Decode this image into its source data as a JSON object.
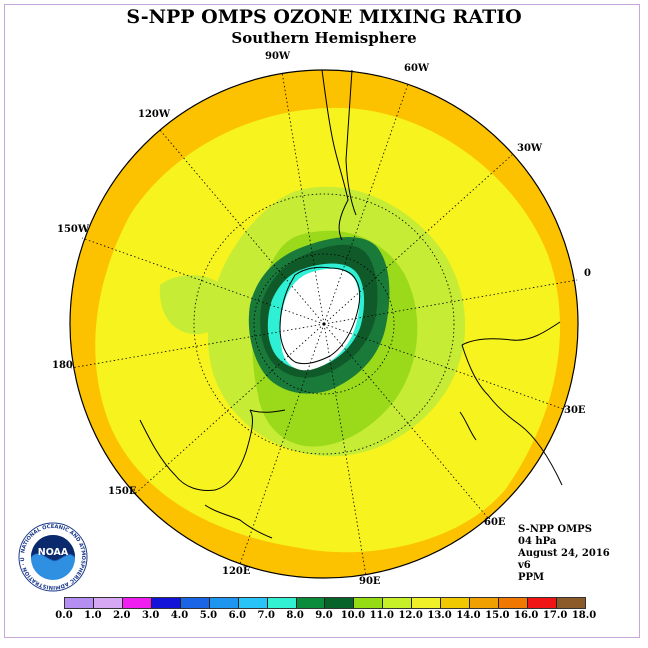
{
  "header": {
    "title": "S-NPP OMPS OZONE MIXING RATIO",
    "subtitle": "Southern Hemisphere"
  },
  "longitude_labels": [
    "90W",
    "60W",
    "30W",
    "0",
    "30E",
    "60E",
    "90E",
    "120E",
    "150E",
    "180",
    "150W",
    "120W"
  ],
  "info": {
    "instrument": "S-NPP OMPS",
    "level": "04 hPa",
    "date": "August 24, 2016",
    "version": "v6",
    "units": "PPM"
  },
  "logo": {
    "text": "NOAA",
    "ring_text": "NATIONAL OCEANIC AND ATMOSPHERIC ADMINISTRATION · U.S. DEPARTMENT OF COMMERCE"
  },
  "colorbar": {
    "colors": [
      "#b48ef0",
      "#d6a8f4",
      "#f01ef0",
      "#1414d8",
      "#1a64e6",
      "#1e96f0",
      "#28c4f8",
      "#32f0d2",
      "#0a8c3c",
      "#06642a",
      "#96dc14",
      "#c8f028",
      "#f0f028",
      "#f0c800",
      "#f0a000",
      "#f07800",
      "#f01414",
      "#8c5a28"
    ],
    "ticks": [
      "0.0",
      "1.0",
      "2.0",
      "3.0",
      "4.0",
      "5.0",
      "6.0",
      "7.0",
      "8.0",
      "9.0",
      "10.0",
      "11.0",
      "12.0",
      "13.0",
      "14.0",
      "15.0",
      "16.0",
      "17.0",
      "18.0"
    ]
  },
  "map_colors": {
    "outer": "#fcc200",
    "band13": "#f6f31e",
    "band12": "#c6ec35",
    "band11": "#9ada1a",
    "band10": "#1a7a3a",
    "band9": "#0f5a28",
    "band8": "#2ef0d4",
    "hole": "#ffffff"
  }
}
